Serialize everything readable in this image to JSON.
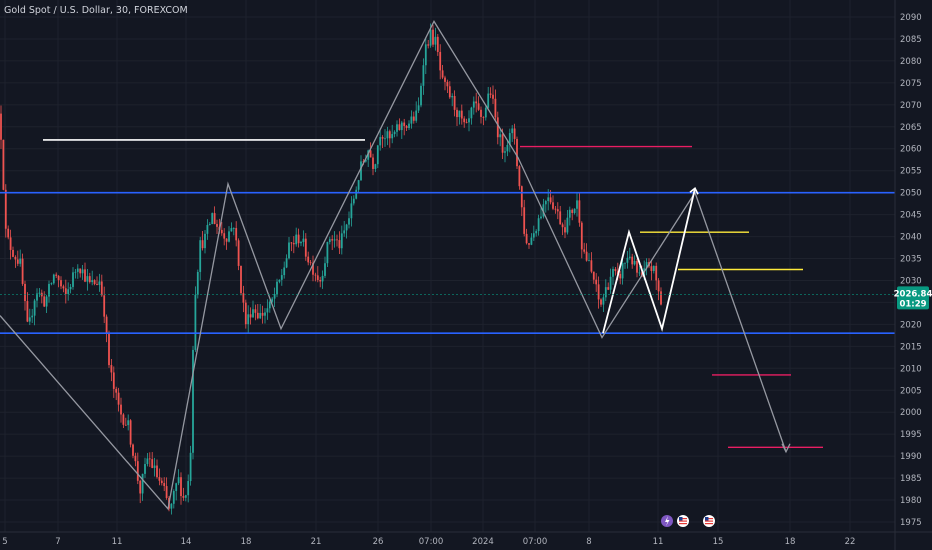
{
  "header": {
    "symbol_title": "Gold Spot / U.S. Dollar, 30, FOREXCOM"
  },
  "price_badge": {
    "price": "2026.84",
    "countdown": "01:29",
    "color": "#089981"
  },
  "colors": {
    "background": "#131722",
    "grid": "#1e222d",
    "up_candle": "#26a69a",
    "down_candle": "#ef5350",
    "support_resistance": "#2962ff",
    "pattern_line": "#9598a1",
    "projection_line": "#ffffff",
    "target_line": "#e91e63",
    "resistance_short": "#ffeb3b",
    "white_level": "#ffffff"
  },
  "icons": [
    "lightning-icon",
    "us-flag-icon",
    "us-flag-icon"
  ],
  "chart_data": {
    "type": "candlestick",
    "title": "Gold Spot / U.S. Dollar, 30, FOREXCOM",
    "ylim": [
      1973,
      2092
    ],
    "y_ticks": [
      2090,
      2085,
      2080,
      2075,
      2070,
      2065,
      2060,
      2055,
      2050,
      2045,
      2040,
      2035,
      2030,
      2025,
      2020,
      2015,
      2010,
      2005,
      2000,
      1995,
      1990,
      1985,
      1980,
      1975
    ],
    "x_ticks": [
      "5",
      "7",
      "11",
      "14",
      "18",
      "21",
      "26",
      "07:00",
      "2024",
      "07:00",
      "8",
      "11",
      "15",
      "18",
      "22"
    ],
    "last_price": 2026.84,
    "price_path": [
      [
        0,
        2068
      ],
      [
        6,
        2040
      ],
      [
        14,
        2036
      ],
      [
        20,
        2034
      ],
      [
        28,
        2018
      ],
      [
        36,
        2028
      ],
      [
        45,
        2025
      ],
      [
        55,
        2032
      ],
      [
        65,
        2026
      ],
      [
        78,
        2034
      ],
      [
        90,
        2029
      ],
      [
        100,
        2030
      ],
      [
        105,
        2022
      ],
      [
        108,
        2012
      ],
      [
        114,
        2005
      ],
      [
        120,
        2000
      ],
      [
        128,
        1997
      ],
      [
        134,
        1990
      ],
      [
        140,
        1982
      ],
      [
        148,
        1990
      ],
      [
        156,
        1986
      ],
      [
        164,
        1982
      ],
      [
        170,
        1977
      ],
      [
        178,
        1985
      ],
      [
        184,
        1980
      ],
      [
        190,
        1986
      ],
      [
        194,
        2025
      ],
      [
        200,
        2038
      ],
      [
        206,
        2040
      ],
      [
        212,
        2045
      ],
      [
        218,
        2042
      ],
      [
        226,
        2040
      ],
      [
        234,
        2043
      ],
      [
        240,
        2030
      ],
      [
        246,
        2020
      ],
      [
        252,
        2024
      ],
      [
        260,
        2022
      ],
      [
        270,
        2024
      ],
      [
        280,
        2030
      ],
      [
        290,
        2038
      ],
      [
        300,
        2040
      ],
      [
        310,
        2034
      ],
      [
        320,
        2030
      ],
      [
        330,
        2040
      ],
      [
        340,
        2038
      ],
      [
        350,
        2045
      ],
      [
        360,
        2055
      ],
      [
        368,
        2060
      ],
      [
        374,
        2056
      ],
      [
        380,
        2064
      ],
      [
        390,
        2062
      ],
      [
        400,
        2065
      ],
      [
        410,
        2066
      ],
      [
        418,
        2068
      ],
      [
        424,
        2082
      ],
      [
        430,
        2086
      ],
      [
        436,
        2084
      ],
      [
        442,
        2075
      ],
      [
        450,
        2072
      ],
      [
        458,
        2068
      ],
      [
        466,
        2064
      ],
      [
        474,
        2070
      ],
      [
        482,
        2066
      ],
      [
        490,
        2074
      ],
      [
        496,
        2066
      ],
      [
        502,
        2060
      ],
      [
        508,
        2062
      ],
      [
        514,
        2064
      ],
      [
        520,
        2050
      ],
      [
        526,
        2038
      ],
      [
        532,
        2040
      ],
      [
        540,
        2045
      ],
      [
        548,
        2050
      ],
      [
        556,
        2046
      ],
      [
        564,
        2042
      ],
      [
        572,
        2046
      ],
      [
        578,
        2048
      ],
      [
        582,
        2038
      ],
      [
        588,
        2034
      ],
      [
        594,
        2030
      ],
      [
        600,
        2024
      ],
      [
        606,
        2028
      ],
      [
        612,
        2032
      ],
      [
        618,
        2030
      ],
      [
        624,
        2034
      ],
      [
        630,
        2036
      ],
      [
        636,
        2032
      ],
      [
        642,
        2030
      ],
      [
        648,
        2034
      ],
      [
        654,
        2032
      ],
      [
        658,
        2028
      ],
      [
        662,
        2024
      ]
    ],
    "annotations": {
      "support_resistance_levels": [
        2050,
        2018
      ],
      "white_level": {
        "x_range": [
          43,
          365
        ],
        "price": 2062
      },
      "target_levels": [
        {
          "x_range": [
            520,
            692
          ],
          "price": 2060.5
        },
        {
          "x_range": [
            712,
            791
          ],
          "price": 2008.5
        },
        {
          "x_range": [
            728,
            823
          ],
          "price": 1992
        }
      ],
      "short_levels": [
        {
          "x_range": [
            640,
            749
          ],
          "price": 2041
        },
        {
          "x_range": [
            678,
            803
          ],
          "price": 2032.5
        }
      ],
      "zigzag_pattern": [
        [
          0,
          2022
        ],
        [
          168,
          1978
        ],
        [
          228,
          2052
        ],
        [
          281,
          2019
        ],
        [
          434,
          2089
        ],
        [
          518,
          2058
        ],
        [
          602,
          2017
        ],
        [
          695,
          2050
        ],
        [
          786,
          1991
        ]
      ],
      "projection_path": [
        [
          603,
          2018
        ],
        [
          629,
          2041
        ],
        [
          662,
          2019
        ],
        [
          695,
          2051
        ]
      ],
      "projection_arrow_tip": [
        695,
        2051
      ],
      "target_arrow_tip": [
        786,
        1991
      ]
    }
  }
}
